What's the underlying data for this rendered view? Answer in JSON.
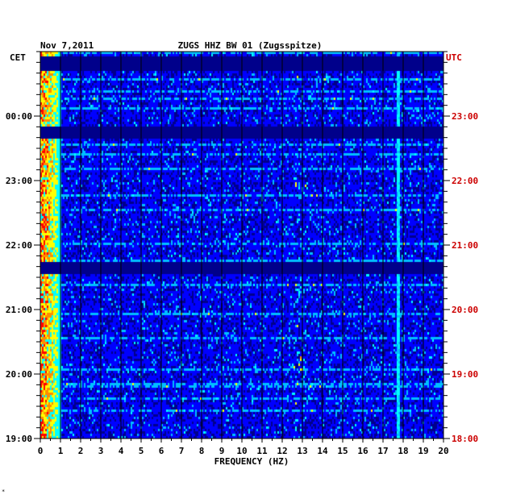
{
  "chart_data": {
    "type": "heatmap",
    "title": "ZUGS HHZ BW 01 (Zugsspitze)",
    "date": "Nov 7,2011",
    "xlabel": "FREQUENCY (HZ)",
    "xlim": [
      0,
      20
    ],
    "x_ticks": [
      "0",
      "1",
      "2",
      "3",
      "4",
      "5",
      "6",
      "7",
      "8",
      "9",
      "10",
      "11",
      "12",
      "13",
      "14",
      "15",
      "16",
      "17",
      "18",
      "19",
      "20"
    ],
    "left_axis_label": "CET",
    "right_axis_label": "UTC",
    "left_time_ticks": [
      "00:00",
      "23:00",
      "22:00",
      "21:00",
      "20:00",
      "19:00"
    ],
    "right_time_ticks": [
      "23:00",
      "22:00",
      "21:00",
      "20:00",
      "19:00",
      "18:00"
    ],
    "time_range_hours": 6,
    "colormap": [
      "#00008b",
      "#0000ff",
      "#00bfff",
      "#00ffff",
      "#ffff00",
      "#ff8c00",
      "#ff0000"
    ],
    "vertical_grid": true,
    "horizontal_grid": false,
    "features": {
      "low_frequency_band_hz": [
        0,
        1
      ],
      "dark_bands_cet": [
        "00:10",
        "23:05",
        "21:00"
      ],
      "spectral_line_hz": 17.7,
      "intermittent_bursts_hz": [
        12.5,
        13.5
      ]
    },
    "left_axis_color": "#000000",
    "right_axis_color": "#cc0000"
  },
  "footer_mark": "*"
}
